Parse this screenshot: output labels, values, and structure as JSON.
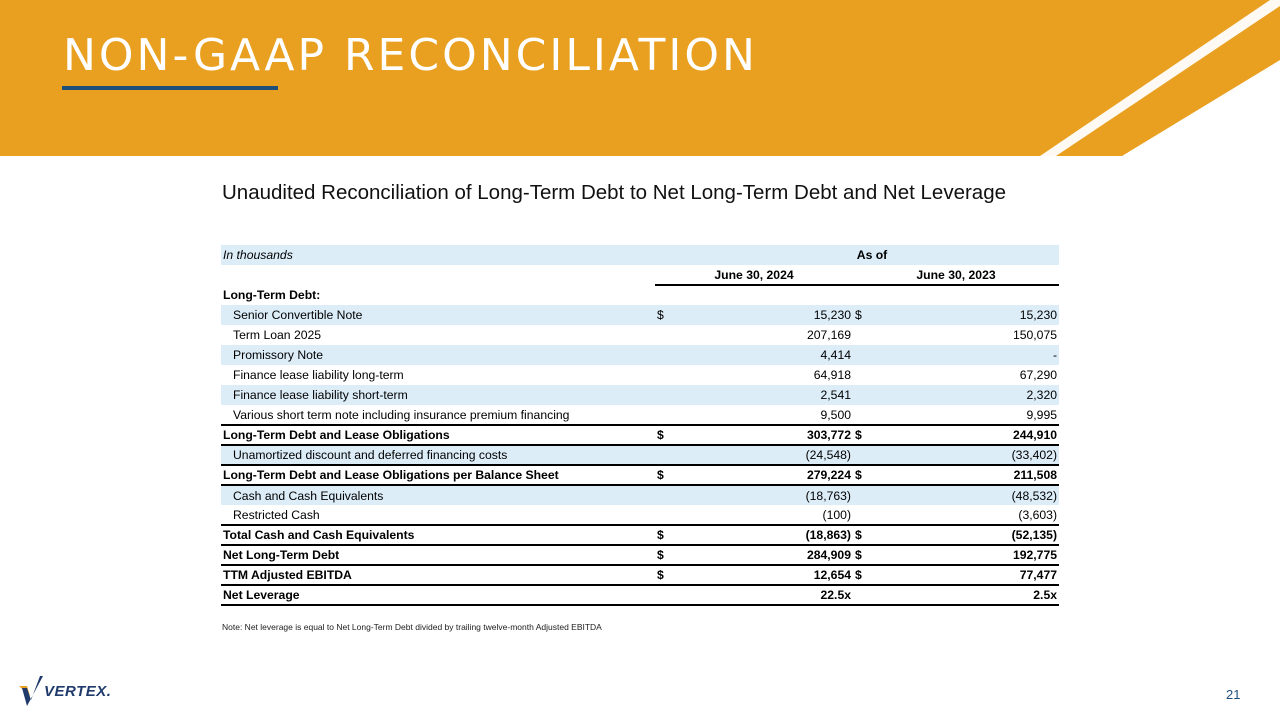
{
  "header": {
    "title": "NON-GAAP RECONCILIATION",
    "background_color": "#e9a020"
  },
  "subtitle": "Unaudited Reconciliation of Long-Term Debt to Net Long-Term Debt and Net Leverage",
  "table": {
    "unit_label": "In thousands",
    "as_of_label": "As of",
    "col1_header": "June 30, 2024",
    "col2_header": "June 30, 2023",
    "section_label": "Long-Term Debt:",
    "rows": [
      {
        "label": "Senior Convertible Note",
        "d1": "$",
        "v1": "15,230",
        "d2": "$",
        "v2": "15,230"
      },
      {
        "label": "Term Loan 2025",
        "d1": "",
        "v1": "207,169",
        "d2": "",
        "v2": "150,075"
      },
      {
        "label": "Promissory Note",
        "d1": "",
        "v1": "4,414",
        "d2": "",
        "v2": "-"
      },
      {
        "label": "Finance lease liability long-term",
        "d1": "",
        "v1": "64,918",
        "d2": "",
        "v2": "67,290"
      },
      {
        "label": "Finance lease liability short-term",
        "d1": "",
        "v1": "2,541",
        "d2": "",
        "v2": "2,320"
      },
      {
        "label": "Various short term note including insurance premium financing",
        "d1": "",
        "v1": "9,500",
        "d2": "",
        "v2": "9,995"
      },
      {
        "label": "Long-Term Debt and Lease Obligations",
        "d1": "$",
        "v1": "303,772",
        "d2": "$",
        "v2": "244,910"
      },
      {
        "label": "Unamortized discount and deferred financing costs",
        "d1": "",
        "v1": "(24,548)",
        "d2": "",
        "v2": "(33,402)"
      },
      {
        "label": "Long-Term Debt and Lease Obligations per Balance Sheet",
        "d1": "$",
        "v1": "279,224",
        "d2": "$",
        "v2": "211,508"
      },
      {
        "label": "Cash and Cash Equivalents",
        "d1": "",
        "v1": "(18,763)",
        "d2": "",
        "v2": "(48,532)"
      },
      {
        "label": "Restricted Cash",
        "d1": "",
        "v1": "(100)",
        "d2": "",
        "v2": "(3,603)"
      },
      {
        "label": "Total Cash and Cash Equivalents",
        "d1": "$",
        "v1": "(18,863)",
        "d2": "$",
        "v2": "(52,135)"
      },
      {
        "label": "Net Long-Term Debt",
        "d1": "$",
        "v1": "284,909",
        "d2": "$",
        "v2": "192,775"
      },
      {
        "label": "TTM Adjusted EBITDA",
        "d1": "$",
        "v1": "12,654",
        "d2": "$",
        "v2": "77,477"
      },
      {
        "label": "Net Leverage",
        "d1": "",
        "v1": "22.5x",
        "d2": "",
        "v2": "2.5x"
      }
    ]
  },
  "note": "Note: Net leverage is equal to Net Long-Term Debt divided by trailing twelve-month Adjusted EBITDA",
  "footer": {
    "logo_text": "VERTEX.",
    "page_number": "21"
  }
}
